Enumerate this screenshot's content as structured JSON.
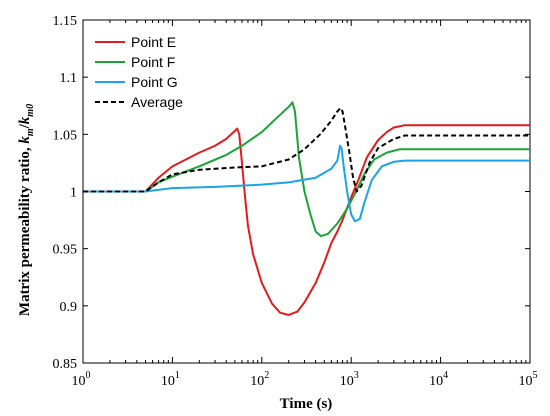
{
  "chart_data": {
    "type": "line",
    "xscale": "log",
    "xlabel": "Time (s)",
    "ylabel": "Matrix permeability ratio, k_m/k_m0",
    "ylabel_parts": {
      "prefix": "Matrix permeability ratio, ",
      "k1": "k",
      "sub1": "m",
      "slash": "/",
      "k2": "k",
      "sub2": "m0"
    },
    "xlim": [
      1,
      100000
    ],
    "ylim": [
      0.85,
      1.15
    ],
    "x_ticks": [
      {
        "value": 1,
        "base": "10",
        "exp": "0"
      },
      {
        "value": 10,
        "base": "10",
        "exp": "1"
      },
      {
        "value": 100,
        "base": "10",
        "exp": "2"
      },
      {
        "value": 1000,
        "base": "10",
        "exp": "3"
      },
      {
        "value": 10000,
        "base": "10",
        "exp": "4"
      },
      {
        "value": 100000,
        "base": "10",
        "exp": "5"
      }
    ],
    "y_ticks": [
      {
        "value": 0.85,
        "label": "0.85"
      },
      {
        "value": 0.9,
        "label": "0.9"
      },
      {
        "value": 0.95,
        "label": "0.95"
      },
      {
        "value": 1.0,
        "label": "1"
      },
      {
        "value": 1.05,
        "label": "1.05"
      },
      {
        "value": 1.1,
        "label": "1.1"
      },
      {
        "value": 1.15,
        "label": "1.15"
      }
    ],
    "grid": false,
    "legend_position": "top-left",
    "series": [
      {
        "name": "Point E",
        "color": "#e41a1c",
        "dash": "solid",
        "points": [
          [
            1,
            1.0
          ],
          [
            2,
            1.0
          ],
          [
            5,
            1.0
          ],
          [
            7,
            1.012
          ],
          [
            10,
            1.022
          ],
          [
            20,
            1.034
          ],
          [
            30,
            1.04
          ],
          [
            40,
            1.046
          ],
          [
            50,
            1.053
          ],
          [
            53,
            1.055
          ],
          [
            56,
            1.05
          ],
          [
            60,
            1.025
          ],
          [
            65,
            0.995
          ],
          [
            70,
            0.97
          ],
          [
            80,
            0.945
          ],
          [
            100,
            0.92
          ],
          [
            130,
            0.902
          ],
          [
            160,
            0.894
          ],
          [
            200,
            0.892
          ],
          [
            250,
            0.895
          ],
          [
            300,
            0.903
          ],
          [
            400,
            0.92
          ],
          [
            500,
            0.938
          ],
          [
            600,
            0.955
          ],
          [
            700,
            0.965
          ],
          [
            800,
            0.975
          ],
          [
            1000,
            0.995
          ],
          [
            1200,
            1.01
          ],
          [
            1500,
            1.03
          ],
          [
            2000,
            1.045
          ],
          [
            2500,
            1.052
          ],
          [
            3000,
            1.056
          ],
          [
            4000,
            1.058
          ],
          [
            10000,
            1.058
          ],
          [
            100000,
            1.058
          ]
        ]
      },
      {
        "name": "Point F",
        "color": "#1aa337",
        "dash": "solid",
        "points": [
          [
            1,
            1.0
          ],
          [
            2,
            1.0
          ],
          [
            5,
            1.0
          ],
          [
            7,
            1.008
          ],
          [
            10,
            1.013
          ],
          [
            20,
            1.022
          ],
          [
            40,
            1.032
          ],
          [
            60,
            1.04
          ],
          [
            100,
            1.052
          ],
          [
            150,
            1.065
          ],
          [
            200,
            1.074
          ],
          [
            220,
            1.078
          ],
          [
            235,
            1.07
          ],
          [
            260,
            1.03
          ],
          [
            300,
            1.0
          ],
          [
            350,
            0.98
          ],
          [
            400,
            0.965
          ],
          [
            460,
            0.961
          ],
          [
            550,
            0.963
          ],
          [
            700,
            0.972
          ],
          [
            900,
            0.985
          ],
          [
            1100,
            0.998
          ],
          [
            1400,
            1.015
          ],
          [
            1800,
            1.028
          ],
          [
            2500,
            1.034
          ],
          [
            3500,
            1.037
          ],
          [
            10000,
            1.037
          ],
          [
            100000,
            1.037
          ]
        ]
      },
      {
        "name": "Point G",
        "color": "#1aa3e8",
        "dash": "solid",
        "points": [
          [
            1,
            1.0
          ],
          [
            5,
            1.0
          ],
          [
            10,
            1.003
          ],
          [
            30,
            1.004
          ],
          [
            100,
            1.006
          ],
          [
            200,
            1.008
          ],
          [
            400,
            1.012
          ],
          [
            600,
            1.02
          ],
          [
            700,
            1.027
          ],
          [
            750,
            1.04
          ],
          [
            780,
            1.038
          ],
          [
            830,
            1.02
          ],
          [
            900,
            1.0
          ],
          [
            1000,
            0.98
          ],
          [
            1100,
            0.974
          ],
          [
            1250,
            0.976
          ],
          [
            1400,
            0.99
          ],
          [
            1700,
            1.01
          ],
          [
            2200,
            1.022
          ],
          [
            3000,
            1.026
          ],
          [
            4000,
            1.027
          ],
          [
            10000,
            1.027
          ],
          [
            100000,
            1.027
          ]
        ]
      },
      {
        "name": "Average",
        "color": "#000000",
        "dash": "dashed",
        "points": [
          [
            1,
            1.0
          ],
          [
            5,
            1.0
          ],
          [
            7,
            1.008
          ],
          [
            10,
            1.015
          ],
          [
            20,
            1.019
          ],
          [
            50,
            1.021
          ],
          [
            100,
            1.022
          ],
          [
            200,
            1.028
          ],
          [
            300,
            1.037
          ],
          [
            450,
            1.05
          ],
          [
            600,
            1.062
          ],
          [
            700,
            1.07
          ],
          [
            760,
            1.073
          ],
          [
            800,
            1.07
          ],
          [
            850,
            1.058
          ],
          [
            950,
            1.035
          ],
          [
            1050,
            1.012
          ],
          [
            1150,
            1.0
          ],
          [
            1300,
            1.005
          ],
          [
            1600,
            1.025
          ],
          [
            2000,
            1.038
          ],
          [
            3000,
            1.046
          ],
          [
            4000,
            1.049
          ],
          [
            10000,
            1.049
          ],
          [
            100000,
            1.049
          ]
        ]
      }
    ]
  }
}
